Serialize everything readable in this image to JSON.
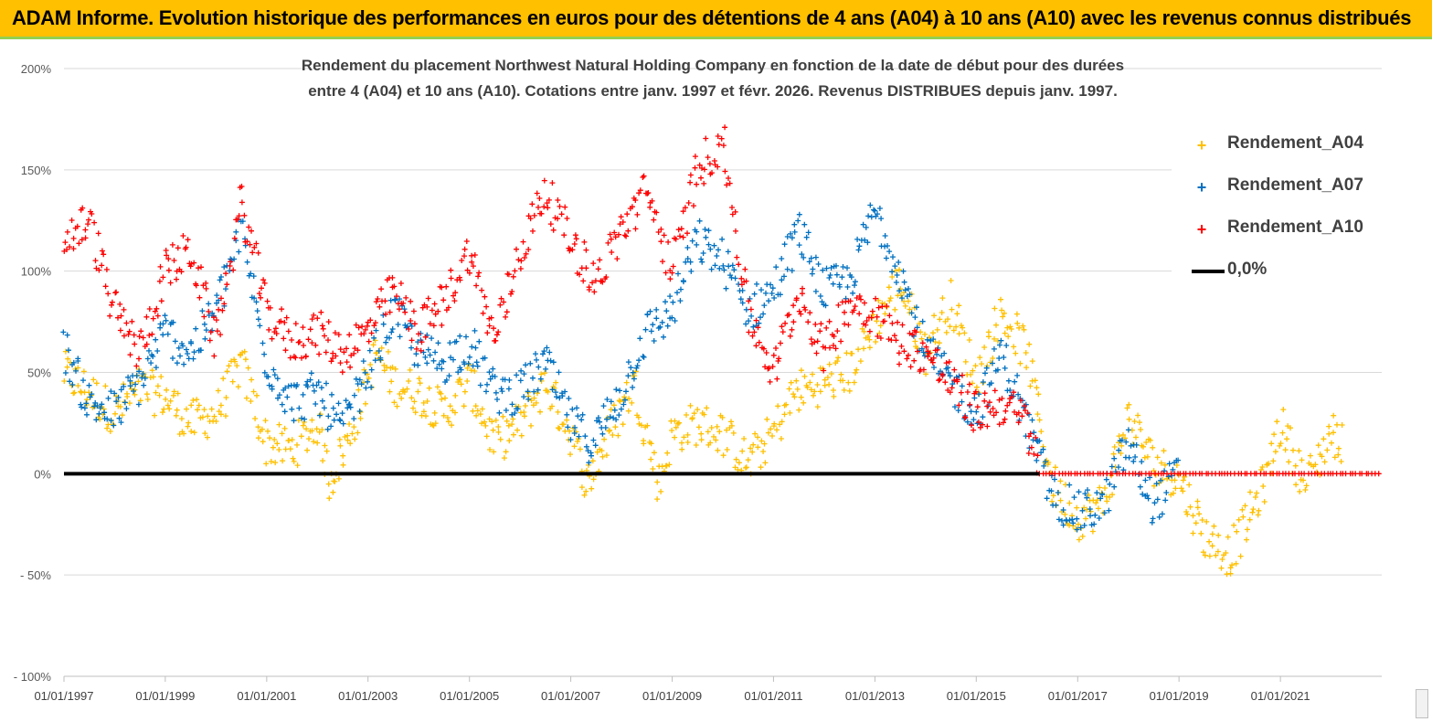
{
  "banner": {
    "title": "ADAM Informe. Evolution historique des performances en euros pour des détentions de 4 ans (A04) à 10 ans (A10) avec les revenus connus distribués"
  },
  "colors": {
    "banner_bg": "#ffc000",
    "banner_rule": "#92d050",
    "A04": "#ffc000",
    "A07": "#0070c0",
    "A10": "#ff0000",
    "zero_line": "#000000"
  },
  "chart_data": {
    "type": "scatter",
    "title_line1": "Rendement du placement Northwest Natural Holding Company en  fonction de la date de début pour des durées",
    "title_line2": "entre 4 (A04) et 10 ans (A10).  Cotations entre janv. 1997 et févr. 2026. Revenus DISTRIBUES depuis janv. 1997.",
    "xlabel": "",
    "ylabel": "",
    "x_range": [
      "1997-01-01",
      "2023-01-01"
    ],
    "ylim": [
      -100,
      200
    ],
    "y_ticks": [
      200,
      150,
      100,
      50,
      0,
      -50,
      -100
    ],
    "y_tick_labels": [
      "200%",
      "150%",
      "100%",
      "50%",
      "0%",
      "- 50%",
      "- 100%"
    ],
    "x_tick_labels": [
      "01/01/1997",
      "01/01/1999",
      "01/01/2001",
      "01/01/2003",
      "01/01/2005",
      "01/01/2007",
      "01/01/2009",
      "01/01/2011",
      "01/01/2013",
      "01/01/2015",
      "01/01/2017",
      "01/01/2019",
      "01/01/2021"
    ],
    "grid": "horizontal",
    "legend_position": "top-right",
    "series": [
      {
        "name": "Rendement_A04",
        "marker": "+",
        "points": [
          [
            "1997-01-01",
            50
          ],
          [
            "1997-07-01",
            40
          ],
          [
            "1998-01-01",
            30
          ],
          [
            "1998-07-01",
            42
          ],
          [
            "1999-01-01",
            38
          ],
          [
            "1999-07-01",
            25
          ],
          [
            "2000-01-01",
            30
          ],
          [
            "2000-07-01",
            55
          ],
          [
            "2001-01-01",
            15
          ],
          [
            "2001-07-01",
            12
          ],
          [
            "2002-01-01",
            25
          ],
          [
            "2002-04-01",
            -3
          ],
          [
            "2002-09-01",
            20
          ],
          [
            "2003-03-01",
            60
          ],
          [
            "2003-07-01",
            45
          ],
          [
            "2004-01-01",
            40
          ],
          [
            "2004-07-01",
            30
          ],
          [
            "2005-01-01",
            45
          ],
          [
            "2005-07-01",
            15
          ],
          [
            "2006-01-01",
            25
          ],
          [
            "2006-07-01",
            45
          ],
          [
            "2007-01-01",
            20
          ],
          [
            "2007-05-01",
            -5
          ],
          [
            "2007-09-01",
            15
          ],
          [
            "2008-04-01",
            45
          ],
          [
            "2008-10-01",
            -5
          ],
          [
            "2009-01-01",
            20
          ],
          [
            "2009-07-01",
            25
          ],
          [
            "2010-01-01",
            20
          ],
          [
            "2010-07-01",
            5
          ],
          [
            "2011-01-01",
            20
          ],
          [
            "2011-06-01",
            40
          ],
          [
            "2012-01-01",
            45
          ],
          [
            "2012-07-01",
            50
          ],
          [
            "2013-01-01",
            75
          ],
          [
            "2013-07-01",
            95
          ],
          [
            "2014-01-01",
            60
          ],
          [
            "2014-07-01",
            85
          ],
          [
            "2015-01-01",
            45
          ],
          [
            "2015-07-01",
            80
          ],
          [
            "2016-01-01",
            60
          ],
          [
            "2016-07-01",
            -5
          ],
          [
            "2017-01-01",
            -22
          ],
          [
            "2017-07-01",
            -15
          ],
          [
            "2018-01-01",
            28
          ],
          [
            "2018-07-01",
            5
          ],
          [
            "2019-01-01",
            -2
          ],
          [
            "2019-07-01",
            -30
          ],
          [
            "2020-01-01",
            -40
          ],
          [
            "2020-06-01",
            -20
          ],
          [
            "2020-10-01",
            0
          ],
          [
            "2021-01-01",
            25
          ],
          [
            "2021-07-01",
            -5
          ],
          [
            "2022-01-01",
            20
          ],
          [
            "2022-04-01",
            15
          ]
        ]
      },
      {
        "name": "Rendement_A07",
        "marker": "+",
        "points": [
          [
            "1997-01-01",
            62
          ],
          [
            "1997-07-01",
            35
          ],
          [
            "1998-01-01",
            30
          ],
          [
            "1998-07-01",
            45
          ],
          [
            "1999-01-01",
            70
          ],
          [
            "1999-07-01",
            60
          ],
          [
            "2000-01-01",
            80
          ],
          [
            "2000-07-01",
            120
          ],
          [
            "2001-01-01",
            55
          ],
          [
            "2001-07-01",
            35
          ],
          [
            "2002-01-01",
            40
          ],
          [
            "2002-07-01",
            22
          ],
          [
            "2003-01-01",
            50
          ],
          [
            "2003-07-01",
            80
          ],
          [
            "2004-01-01",
            60
          ],
          [
            "2004-07-01",
            55
          ],
          [
            "2005-01-01",
            65
          ],
          [
            "2005-07-01",
            40
          ],
          [
            "2006-01-01",
            40
          ],
          [
            "2006-07-01",
            55
          ],
          [
            "2007-01-01",
            25
          ],
          [
            "2007-06-01",
            15
          ],
          [
            "2008-01-01",
            40
          ],
          [
            "2008-07-01",
            70
          ],
          [
            "2009-01-01",
            80
          ],
          [
            "2009-07-01",
            115
          ],
          [
            "2010-01-01",
            105
          ],
          [
            "2010-07-01",
            80
          ],
          [
            "2011-01-01",
            90
          ],
          [
            "2011-07-01",
            120
          ],
          [
            "2012-01-01",
            90
          ],
          [
            "2012-07-01",
            95
          ],
          [
            "2013-01-01",
            130
          ],
          [
            "2013-07-01",
            100
          ],
          [
            "2014-01-01",
            60
          ],
          [
            "2014-07-01",
            45
          ],
          [
            "2015-01-01",
            30
          ],
          [
            "2015-07-01",
            60
          ],
          [
            "2016-01-01",
            25
          ],
          [
            "2016-07-01",
            -10
          ],
          [
            "2017-01-01",
            -20
          ],
          [
            "2017-07-01",
            -15
          ],
          [
            "2018-01-01",
            15
          ],
          [
            "2018-07-01",
            -15
          ],
          [
            "2019-01-01",
            0
          ]
        ]
      },
      {
        "name": "Rendement_A10",
        "marker": "+",
        "points": [
          [
            "1997-01-01",
            115
          ],
          [
            "1997-07-01",
            125
          ],
          [
            "1998-01-01",
            80
          ],
          [
            "1998-07-01",
            60
          ],
          [
            "1999-01-01",
            100
          ],
          [
            "1999-07-01",
            110
          ],
          [
            "2000-01-01",
            65
          ],
          [
            "2000-07-01",
            135
          ],
          [
            "2001-01-01",
            80
          ],
          [
            "2001-07-01",
            65
          ],
          [
            "2002-01-01",
            70
          ],
          [
            "2002-07-01",
            60
          ],
          [
            "2003-01-01",
            70
          ],
          [
            "2003-07-01",
            90
          ],
          [
            "2004-01-01",
            70
          ],
          [
            "2004-07-01",
            85
          ],
          [
            "2005-01-01",
            110
          ],
          [
            "2005-07-01",
            65
          ],
          [
            "2006-01-01",
            110
          ],
          [
            "2006-07-01",
            140
          ],
          [
            "2007-01-01",
            115
          ],
          [
            "2007-07-01",
            95
          ],
          [
            "2008-01-01",
            120
          ],
          [
            "2008-07-01",
            140
          ],
          [
            "2009-01-01",
            100
          ],
          [
            "2009-07-01",
            150
          ],
          [
            "2010-01-01",
            165
          ],
          [
            "2010-07-01",
            80
          ],
          [
            "2011-01-01",
            50
          ],
          [
            "2011-07-01",
            90
          ],
          [
            "2012-01-01",
            60
          ],
          [
            "2012-07-01",
            85
          ],
          [
            "2013-01-01",
            80
          ],
          [
            "2013-07-01",
            65
          ],
          [
            "2014-01-01",
            60
          ],
          [
            "2014-07-01",
            45
          ],
          [
            "2015-01-01",
            30
          ],
          [
            "2015-07-01",
            35
          ],
          [
            "2016-01-01",
            25
          ],
          [
            "2016-04-01",
            0
          ],
          [
            "2023-01-01",
            0
          ]
        ]
      },
      {
        "name": "0,0%",
        "marker": "line",
        "points": [
          [
            "1997-01-01",
            0
          ],
          [
            "2016-04-01",
            0
          ]
        ]
      }
    ]
  }
}
